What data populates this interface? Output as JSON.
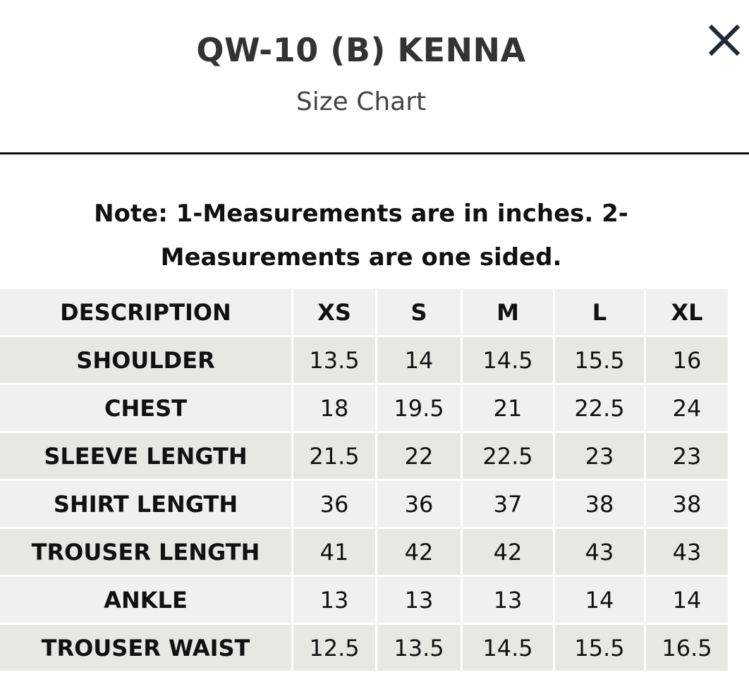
{
  "header": {
    "title": "QW-10 (B) KENNA",
    "subtitle": "Size Chart",
    "close_icon": "close-icon"
  },
  "note": "Note: 1-Measurements are in inches. 2-Measurements are one sided.",
  "table": {
    "columns": [
      "DESCRIPTION",
      "XS",
      "S",
      "M",
      "L",
      "XL"
    ],
    "rows": [
      [
        "SHOULDER",
        "13.5",
        "14",
        "14.5",
        "15.5",
        "16"
      ],
      [
        "CHEST",
        "18",
        "19.5",
        "21",
        "22.5",
        "24"
      ],
      [
        "SLEEVE LENGTH",
        "21.5",
        "22",
        "22.5",
        "23",
        "23"
      ],
      [
        "SHIRT LENGTH",
        "36",
        "36",
        "37",
        "38",
        "38"
      ],
      [
        "TROUSER LENGTH",
        "41",
        "42",
        "42",
        "43",
        "43"
      ],
      [
        "ANKLE",
        "13",
        "13",
        "13",
        "14",
        "14"
      ],
      [
        "TROUSER WAIST",
        "12.5",
        "13.5",
        "14.5",
        "15.5",
        "16.5"
      ]
    ]
  }
}
